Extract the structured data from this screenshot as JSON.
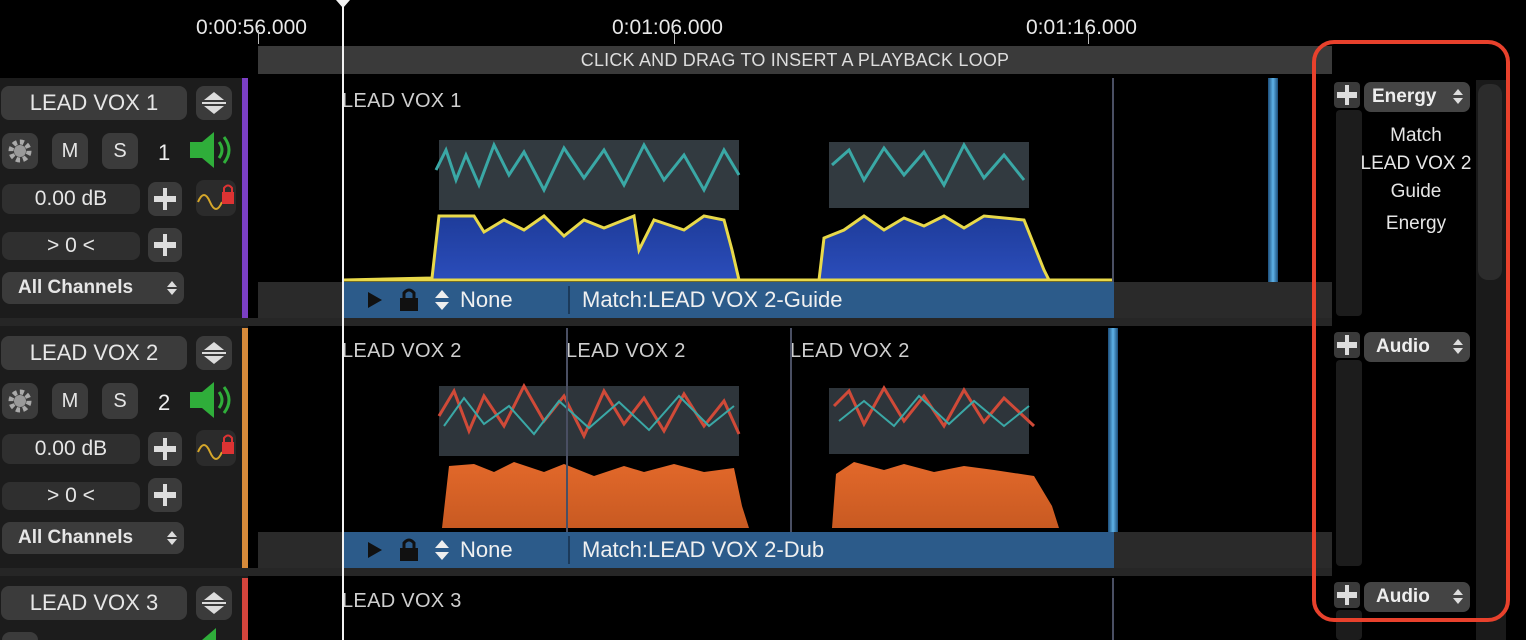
{
  "ruler": {
    "timecodes": [
      "0:00:56.000",
      "0:01:06.000",
      "0:01:16.000"
    ]
  },
  "loop_bar": {
    "text": "CLICK AND DRAG TO INSERT A PLAYBACK LOOP"
  },
  "tracks": [
    {
      "name": "LEAD VOX 1",
      "number": "1",
      "gain": "0.00 dB",
      "pan": "> 0 <",
      "channels": "All Channels",
      "color": "#7b3fc4",
      "clip_labels": [
        "LEAD VOX 1"
      ],
      "clip_bar": {
        "mode": "None",
        "match": "Match:LEAD VOX 2-Guide"
      },
      "right_dropdown": "Energy",
      "right_text": [
        "Match",
        "LEAD VOX 2",
        "Guide",
        "Energy"
      ]
    },
    {
      "name": "LEAD VOX 2",
      "number": "2",
      "gain": "0.00 dB",
      "pan": "> 0 <",
      "channels": "All Channels",
      "color": "#d78a3a",
      "clip_labels": [
        "LEAD VOX 2",
        "LEAD VOX 2",
        "LEAD VOX 2"
      ],
      "clip_bar": {
        "mode": "None",
        "match": "Match:LEAD VOX 2-Dub"
      },
      "right_dropdown": "Audio"
    },
    {
      "name": "LEAD VOX 3",
      "color": "#d4443c",
      "clip_labels": [
        "LEAD VOX 3"
      ],
      "right_dropdown": "Audio"
    }
  ],
  "buttons": {
    "mute": "M",
    "solo": "S"
  },
  "icons": {
    "settings": "gear-icon",
    "speaker": "speaker-icon",
    "lock": "lock-icon",
    "plus": "plus-icon",
    "play": "play-icon",
    "stepper": "up-down-arrows-icon",
    "automation": "automation-wave-icon"
  },
  "colors": {
    "clip_bar": "#2c5b8a",
    "highlight": "#e8412c",
    "waveform1": "#2644a8",
    "waveform2": "#e36f2c"
  }
}
